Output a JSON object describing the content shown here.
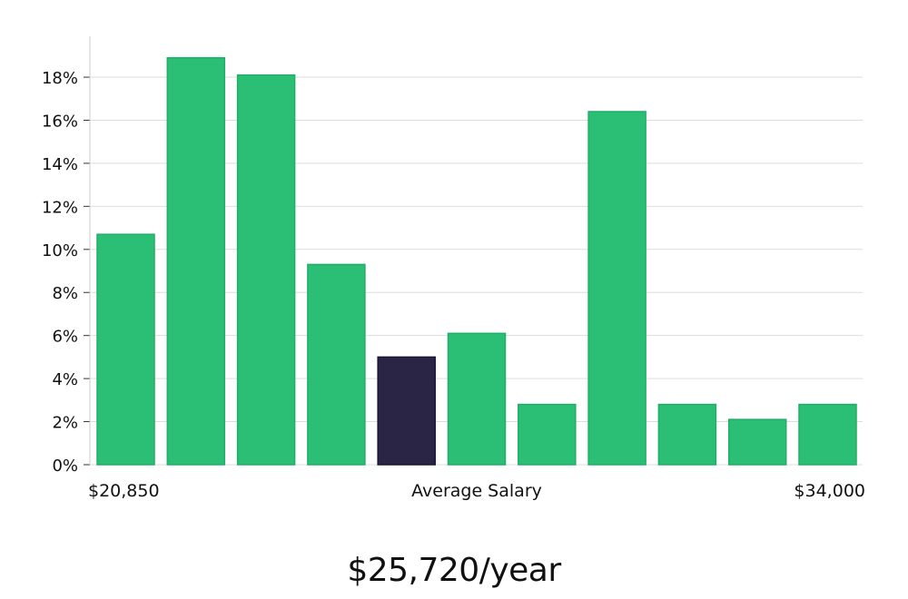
{
  "chart_data": {
    "type": "bar",
    "title": "",
    "xlabel": "Average Salary",
    "ylabel": "",
    "x_range_labels": {
      "min": "$20,850",
      "max": "$34,000"
    },
    "ylim": [
      0,
      19
    ],
    "yticks": [
      0,
      2,
      4,
      6,
      8,
      10,
      12,
      14,
      16,
      18
    ],
    "ytick_suffix": "%",
    "grid": "horizontal",
    "values": [
      10.7,
      18.9,
      18.1,
      9.3,
      5.0,
      6.1,
      2.8,
      16.4,
      2.8,
      2.1,
      2.8
    ],
    "highlight_index": 4,
    "colors": {
      "bar": "#2abf74",
      "highlight": "#2a2545",
      "grid": "#dddddd",
      "axis": "#cccccc"
    }
  },
  "salary_label": "$25,720/year"
}
